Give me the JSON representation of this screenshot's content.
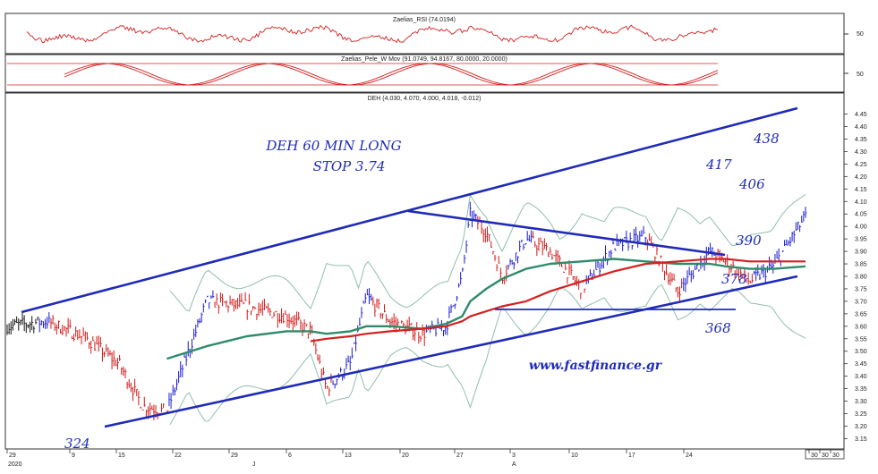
{
  "panels": {
    "rsi": {
      "label": "Zaelias_RSI (74.0194)",
      "tick": "50"
    },
    "stoch": {
      "label": "Zaelias_Pele_W Mov (91.0749, 94.8167, 80.0000, 20.0000)",
      "tick": "50"
    },
    "price": {
      "label": "DEH (4.030, 4.070, 4.000, 4.018, -0.012)"
    }
  },
  "annotations": {
    "title_line1": "DEH 60 MIN LONG",
    "title_line2": "STOP 3.74",
    "website": "www.fastfinance.gr",
    "level_438": "438",
    "level_417": "417",
    "level_406": "406",
    "level_390": "390",
    "level_378": "378",
    "level_368": "368",
    "level_324": "324"
  },
  "x_axis": {
    "ticks": [
      "29",
      "9",
      "15",
      "22",
      "29",
      "6",
      "13",
      "20",
      "27",
      "3",
      "10",
      "17",
      "24",
      "30",
      "30",
      "30"
    ],
    "year": "2020",
    "month_j": "J",
    "month_a": "A"
  },
  "colors": {
    "price_up": "#1a1ad0",
    "price_down": "#d01818",
    "price_neutral": "#111111",
    "ma_fast": "#2e8b6a",
    "ma_slow": "#d42020",
    "bands": "#8fbfaa",
    "trendline": "#1f2bb8",
    "osc": "#d42020"
  },
  "chart_data": [
    {
      "type": "line",
      "title": "Zaelias_RSI (74.0194)",
      "y_ticks": [
        50
      ],
      "last_value": 74.0194
    },
    {
      "type": "line",
      "title": "Zaelias_Pele_W Mov (91.0749, 94.8167, 80.0000, 20.0000)",
      "y_ticks": [
        50
      ],
      "levels": [
        80,
        20
      ],
      "last_values": [
        91.0749,
        94.8167
      ]
    },
    {
      "type": "line",
      "title": "DEH (4.030, 4.070, 4.000, 4.018, -0.012)",
      "ylim": [
        3.13,
        4.47
      ],
      "y_ticks": [
        "3.15",
        "3.20",
        "3.25",
        "3.30",
        "3.35",
        "3.40",
        "3.45",
        "3.50",
        "3.55",
        "3.60",
        "3.65",
        "3.70",
        "3.75",
        "3.80",
        "3.85",
        "3.90",
        "3.95",
        "4.00",
        "4.05",
        "4.10",
        "4.15",
        "4.20",
        "4.25",
        "4.30",
        "4.35",
        "4.40",
        "4.45"
      ],
      "x": [
        0,
        5,
        10,
        14,
        17,
        20,
        25,
        30,
        35,
        38,
        40,
        43,
        45,
        48,
        52,
        55,
        57,
        58,
        60,
        62,
        65,
        68,
        72,
        76,
        80,
        84,
        88,
        90,
        93,
        96,
        100
      ],
      "series": [
        {
          "values": [
            3.6,
            3.62,
            3.55,
            3.45,
            3.28,
            3.26,
            3.7,
            3.68,
            3.64,
            3.58,
            3.35,
            3.45,
            3.72,
            3.62,
            3.57,
            3.6,
            3.8,
            4.05,
            3.98,
            3.8,
            3.95,
            3.9,
            3.75,
            3.92,
            3.96,
            3.74,
            3.9,
            3.86,
            3.78,
            3.84,
            4.04
          ]
        },
        {
          "values": [
            null,
            null,
            null,
            null,
            null,
            3.47,
            3.52,
            3.56,
            3.58,
            3.58,
            3.57,
            3.58,
            3.6,
            3.6,
            3.59,
            3.61,
            3.64,
            3.7,
            3.75,
            3.79,
            3.83,
            3.85,
            3.86,
            3.87,
            3.86,
            3.85,
            3.85,
            3.84,
            3.83,
            3.83,
            3.84
          ]
        },
        {
          "values": [
            null,
            null,
            null,
            null,
            null,
            null,
            null,
            null,
            null,
            3.54,
            3.55,
            3.56,
            3.57,
            3.58,
            3.59,
            3.6,
            3.62,
            3.64,
            3.66,
            3.68,
            3.7,
            3.74,
            3.78,
            3.82,
            3.85,
            3.86,
            3.87,
            3.87,
            3.86,
            3.86,
            3.86
          ]
        }
      ],
      "lines": [
        {
          "from": [
            0,
            3.66
          ],
          "to": [
            37,
            4.06
          ]
        },
        {
          "from": [
            0,
            3.22
          ],
          "to": [
            47,
            3.81
          ]
        },
        {
          "from": [
            38,
            4.05
          ],
          "to": [
            66,
            3.89
          ]
        },
        {
          "from": [
            47,
            3.67
          ],
          "to": [
            71,
            3.67
          ]
        }
      ]
    }
  ]
}
